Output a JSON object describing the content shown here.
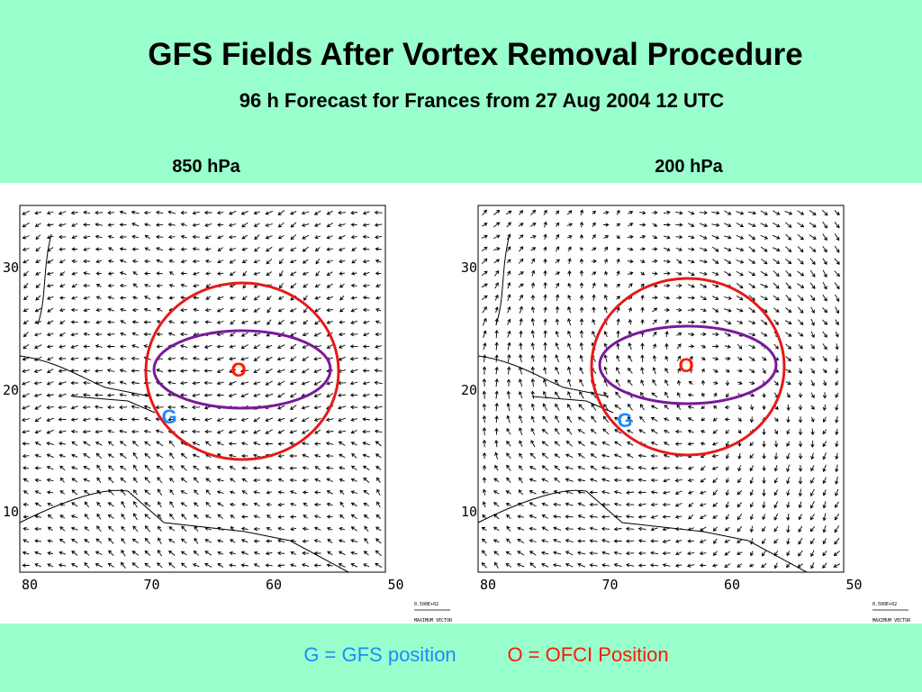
{
  "header": {
    "title": "GFS Fields After Vortex Removal Procedure",
    "subtitle": "96 h Forecast for Frances from 27 Aug 2004 12 UTC"
  },
  "panels": [
    {
      "label": "850 hPa",
      "lat_ticks": [
        30,
        20,
        10
      ],
      "lon_ticks": [
        80,
        70,
        60,
        50
      ],
      "ofci_marker": "O",
      "gfs_marker": "G",
      "vector_scale": "0.500E+02",
      "vector_label": "MAXIMUM VECTOR"
    },
    {
      "label": "200 hPa",
      "lat_ticks": [
        30,
        20,
        10
      ],
      "lon_ticks": [
        80,
        70,
        60,
        50
      ],
      "ofci_marker": "O",
      "gfs_marker": "G",
      "vector_scale": "0.500E+02",
      "vector_label": "MAXIMUM VECTOR"
    }
  ],
  "legend": {
    "gfs": "G = GFS position",
    "ofci": "O = OFCI Position"
  }
}
